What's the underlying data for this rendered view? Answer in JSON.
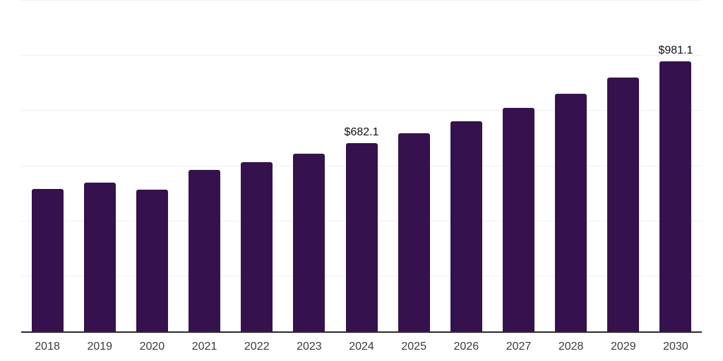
{
  "chart_data": {
    "type": "bar",
    "title": "",
    "xlabel": "",
    "ylabel": "",
    "categories": [
      "2018",
      "2019",
      "2020",
      "2021",
      "2022",
      "2023",
      "2024",
      "2025",
      "2026",
      "2027",
      "2028",
      "2029",
      "2030"
    ],
    "values": [
      517,
      541,
      515,
      587,
      614,
      644,
      682.1,
      720,
      762,
      812,
      863,
      920,
      981.1
    ],
    "data_labels": [
      "",
      "",
      "",
      "",
      "",
      "",
      "$682.1",
      "",
      "",
      "",
      "",
      "",
      "$981.1"
    ],
    "ylim": [
      0,
      1200
    ],
    "grid_step": 200,
    "grid": true,
    "legend": false,
    "colors": {
      "bar": "#35124E",
      "gridline": "#F0F0F0",
      "axis": "#2B2B2B",
      "tick_label": "#3A3A3A",
      "data_label": "#111111"
    }
  }
}
